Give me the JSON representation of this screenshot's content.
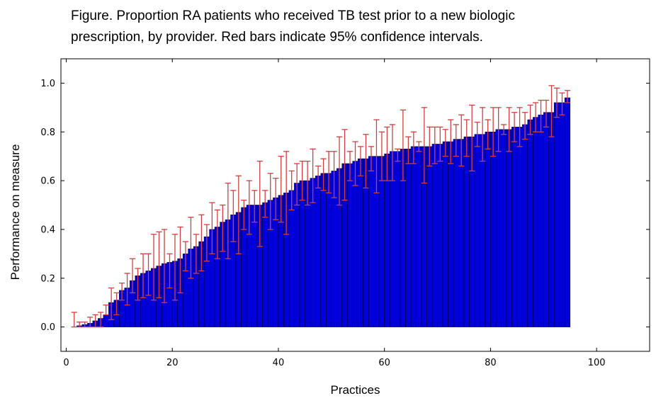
{
  "caption": {
    "line1": "Figure. Proportion RA patients who received TB test prior to a new biologic",
    "line2": "prescription, by provider.  Red bars indicate 95% confidence intervals."
  },
  "colors": {
    "bar_fill": "#0000dd",
    "bar_edge": "#000033",
    "error_bar": "#d04040",
    "axes": "#000000"
  },
  "chart_data": {
    "type": "bar",
    "xlabel": "Practices",
    "ylabel": "Performance on measure",
    "xlim": [
      -1,
      110
    ],
    "ylim": [
      -0.1,
      1.1
    ],
    "x_ticks": [
      0,
      20,
      40,
      60,
      80,
      100
    ],
    "y_ticks": [
      "0.0",
      "0.2",
      "0.4",
      "0.6",
      "0.8",
      "1.0"
    ],
    "grid": false,
    "legend": "none",
    "bar_width": 1,
    "x": [
      1,
      2,
      3,
      4,
      5,
      6,
      7,
      8,
      9,
      10,
      11,
      12,
      13,
      14,
      15,
      16,
      17,
      18,
      19,
      20,
      21,
      22,
      23,
      24,
      25,
      26,
      27,
      28,
      29,
      30,
      31,
      32,
      33,
      34,
      35,
      36,
      37,
      38,
      39,
      40,
      41,
      42,
      43,
      44,
      45,
      46,
      47,
      48,
      49,
      50,
      51,
      52,
      53,
      54,
      55,
      56,
      57,
      58,
      59,
      60,
      61,
      62,
      63,
      64,
      65,
      66,
      67,
      68,
      69,
      70,
      71,
      72,
      73,
      74,
      75,
      76,
      77,
      78,
      79,
      80,
      81,
      82,
      83,
      84,
      85,
      86,
      87,
      88,
      89,
      90,
      91,
      92,
      93,
      94
    ],
    "values": [
      0,
      0.005,
      0.01,
      0.015,
      0.025,
      0.035,
      0.05,
      0.1,
      0.11,
      0.15,
      0.16,
      0.19,
      0.21,
      0.22,
      0.23,
      0.24,
      0.25,
      0.26,
      0.265,
      0.27,
      0.28,
      0.3,
      0.32,
      0.33,
      0.35,
      0.37,
      0.4,
      0.41,
      0.43,
      0.44,
      0.46,
      0.47,
      0.49,
      0.5,
      0.5,
      0.5,
      0.51,
      0.52,
      0.53,
      0.54,
      0.55,
      0.56,
      0.59,
      0.6,
      0.6,
      0.61,
      0.62,
      0.63,
      0.63,
      0.64,
      0.65,
      0.67,
      0.67,
      0.68,
      0.69,
      0.69,
      0.7,
      0.7,
      0.7,
      0.71,
      0.72,
      0.72,
      0.73,
      0.73,
      0.74,
      0.74,
      0.74,
      0.74,
      0.75,
      0.75,
      0.76,
      0.76,
      0.77,
      0.77,
      0.78,
      0.78,
      0.79,
      0.79,
      0.8,
      0.8,
      0.81,
      0.81,
      0.81,
      0.82,
      0.82,
      0.83,
      0.85,
      0.86,
      0.87,
      0.88,
      0.88,
      0.92,
      0.92,
      0.94
    ],
    "ci_upper": [
      0.06,
      0.02,
      0.02,
      0.04,
      0.05,
      0.06,
      0.09,
      0.16,
      0.14,
      0.18,
      0.22,
      0.28,
      0.24,
      0.3,
      0.3,
      0.38,
      0.39,
      0.4,
      0.3,
      0.38,
      0.41,
      0.35,
      0.45,
      0.38,
      0.46,
      0.42,
      0.51,
      0.48,
      0.5,
      0.59,
      0.56,
      0.62,
      0.52,
      0.6,
      0.56,
      0.68,
      0.56,
      0.63,
      0.61,
      0.7,
      0.72,
      0.64,
      0.67,
      0.68,
      0.68,
      0.73,
      0.66,
      0.69,
      0.72,
      0.72,
      0.78,
      0.81,
      0.72,
      0.76,
      0.74,
      0.79,
      0.74,
      0.85,
      0.8,
      0.82,
      0.83,
      0.73,
      0.89,
      0.78,
      0.8,
      0.76,
      0.9,
      0.82,
      0.82,
      0.82,
      0.81,
      0.85,
      0.83,
      0.87,
      0.85,
      0.91,
      0.84,
      0.9,
      0.85,
      0.9,
      0.9,
      0.83,
      0.9,
      0.88,
      0.9,
      0.88,
      0.91,
      0.92,
      0.93,
      0.93,
      0.99,
      0.98,
      0.96,
      0.97
    ],
    "ci_lower": [
      0,
      0,
      0,
      0,
      0,
      0,
      0.05,
      0.03,
      0.05,
      0.11,
      0.09,
      0.14,
      0.11,
      0.12,
      0.13,
      0.11,
      0.12,
      0.1,
      0.16,
      0.11,
      0.14,
      0.23,
      0.2,
      0.22,
      0.23,
      0.27,
      0.3,
      0.28,
      0.31,
      0.28,
      0.35,
      0.3,
      0.4,
      0.38,
      0.43,
      0.33,
      0.45,
      0.4,
      0.44,
      0.43,
      0.38,
      0.48,
      0.5,
      0.52,
      0.5,
      0.51,
      0.57,
      0.56,
      0.55,
      0.53,
      0.5,
      0.52,
      0.6,
      0.58,
      0.62,
      0.57,
      0.64,
      0.55,
      0.6,
      0.6,
      0.6,
      0.68,
      0.6,
      0.67,
      0.67,
      0.72,
      0.59,
      0.66,
      0.67,
      0.68,
      0.7,
      0.67,
      0.7,
      0.66,
      0.7,
      0.64,
      0.74,
      0.68,
      0.73,
      0.7,
      0.72,
      0.79,
      0.72,
      0.76,
      0.74,
      0.77,
      0.79,
      0.8,
      0.8,
      0.82,
      0.78,
      0.86,
      0.87,
      0.92
    ]
  }
}
